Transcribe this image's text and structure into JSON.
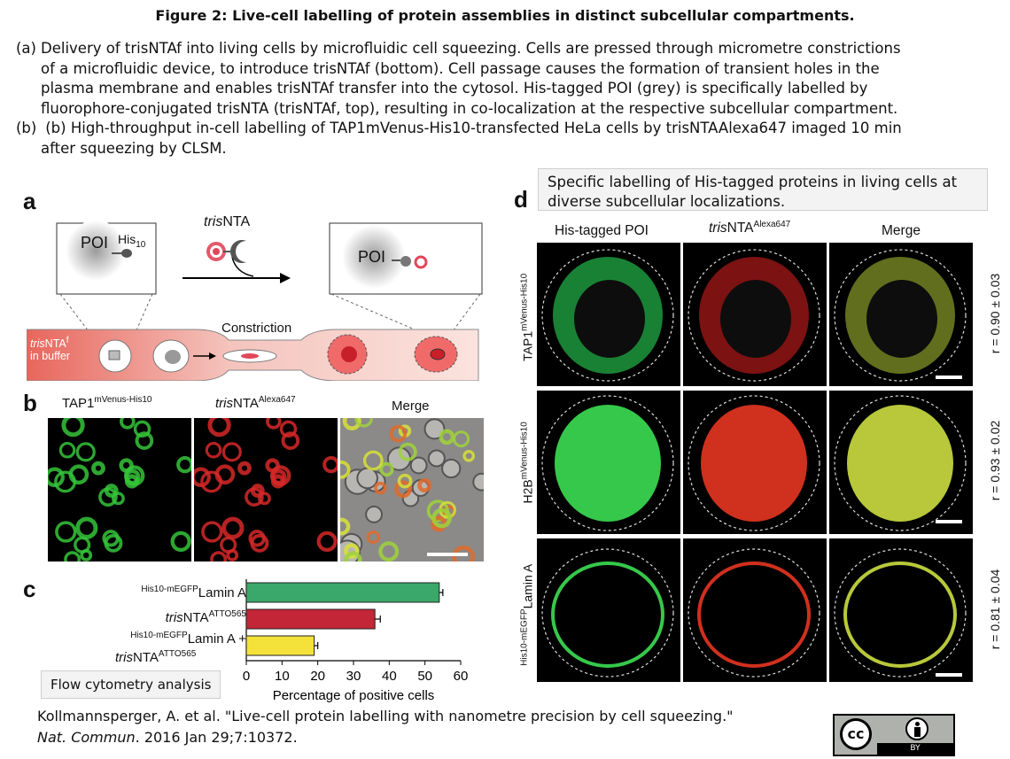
{
  "figure_title": "Figure 2: Live-cell labelling of protein assemblies in distinct subcellular compartments.",
  "caption_a": {
    "label": "(a)",
    "line1": "Delivery of trisNTAf into living cells by microfluidic cell squeezing. Cells are pressed through micrometre constrictions",
    "line2": "of a microfluidic device, to introduce trisNTAf (bottom). Cell passage causes the formation of transient holes in the",
    "line3": "plasma membrane and enables trisNTAf transfer into the cytosol. His-tagged POI (grey) is specifically labelled by",
    "line4": "fluorophore-conjugated trisNTA (trisNTAf, top), resulting in co-localization at the respective subcellular compartment."
  },
  "caption_b": {
    "label": "(b)",
    "line1": " (b) High-throughput in-cell labelling of TAP1mVenus-His10-transfected HeLa cells by trisNTAAlexa647 imaged 10 min",
    "line2": "after squeezing by CLSM."
  },
  "panel_a": {
    "letter": "a",
    "poi": "POI",
    "his": "His",
    "his_sub": "10",
    "trisnta_italic": "tris",
    "trisnta_rest": "NTA",
    "constriction": "Constriction",
    "buffer_italic": "tris",
    "buffer_rest": "NTA",
    "buffer_sup": "f",
    "buffer_line2": "in buffer"
  },
  "panel_b": {
    "letter": "b",
    "h1": "TAP1",
    "h1_sup": "mVenus-His10",
    "h2_italic": "tris",
    "h2": "NTA",
    "h2_sup": "Alexa647",
    "h3": "Merge"
  },
  "panel_c": {
    "letter": "c",
    "note": "Flow cytometry analysis",
    "labels": [
      {
        "sup": "His10-mEGFP",
        "text": "Lamin A",
        "text2": ""
      },
      {
        "italic": "tris",
        "text": "NTA",
        "sup2": "ATTO565"
      },
      {
        "sup": "His10-mEGFP",
        "text": "Lamin A +",
        "line2_italic": "tris",
        "line2": "NTA",
        "line2_sup": "ATTO565"
      }
    ]
  },
  "chart_data": {
    "type": "bar",
    "orientation": "horizontal",
    "categories": [
      "His10-mEGFP Lamin A",
      "trisNTA ATTO565",
      "His10-mEGFP Lamin A + trisNTA ATTO565"
    ],
    "values": [
      54,
      36,
      19
    ],
    "errors": [
      1,
      1.5,
      1
    ],
    "colors": [
      "#3aa86b",
      "#c32636",
      "#f4e23a"
    ],
    "xlabel": "Percentage of positive cells",
    "xlim": [
      0,
      60
    ],
    "xticks": [
      0,
      10,
      20,
      30,
      40,
      50,
      60
    ]
  },
  "panel_d": {
    "letter": "d",
    "note_line1": "Specific labelling of His-tagged proteins in living cells at",
    "note_line2": "diverse subcellular localizations.",
    "col1": "His-tagged POI",
    "col2_italic": "tris",
    "col2": "NTA",
    "col2_sup": "Alexa647",
    "col3": "Merge",
    "rows": [
      {
        "main": "TAP1",
        "sup": "mVenus-His10",
        "r": "r = 0.90 ± 0.03"
      },
      {
        "main": "H2B",
        "sup": "mVenus-His10",
        "r": "r = 0.93 ± 0.02"
      },
      {
        "main": "Lamin A",
        "pre": "His10-mEGFP",
        "r": "r = 0.81 ± 0.04"
      }
    ]
  },
  "reference": {
    "line1": "Kollmannsperger, A. et al. \"Live-cell protein labelling with nanometre precision by cell squeezing.\"",
    "journal": "Nat. Commun",
    "line2_rest": ". 2016 Jan 29;7:10372."
  },
  "license": {
    "cc": "cc",
    "by": "BY"
  }
}
